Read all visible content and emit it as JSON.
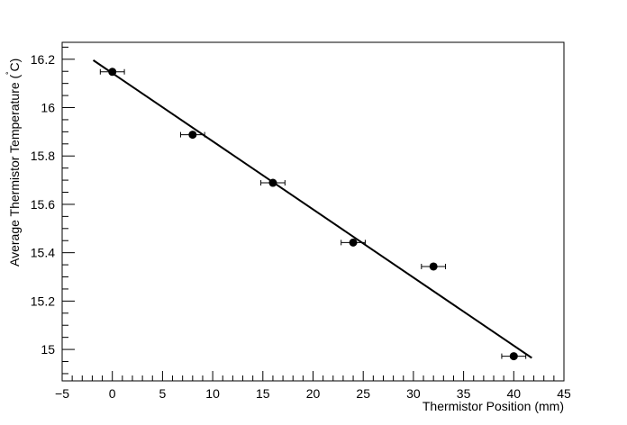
{
  "chart_data": {
    "type": "scatter",
    "title": "",
    "xlabel": "Thermistor Position (mm)",
    "ylabel_main": "Average Thermistor Temperature (",
    "ylabel_degree": "˚",
    "ylabel_unit": "C)",
    "xlim": [
      -5,
      45
    ],
    "ylim": [
      14.87,
      16.27
    ],
    "x_ticks": [
      -5,
      0,
      5,
      10,
      15,
      20,
      25,
      30,
      35,
      40,
      45
    ],
    "y_ticks": [
      15,
      15.2,
      15.4,
      15.6,
      15.8,
      16,
      16.2
    ],
    "x_tick_labels": [
      "−5",
      "0",
      "5",
      "10",
      "15",
      "20",
      "25",
      "30",
      "35",
      "40",
      "45"
    ],
    "y_tick_labels": [
      "15",
      "15.2",
      "15.4",
      "15.6",
      "15.8",
      "16",
      "16.2"
    ],
    "grid": false,
    "legend": "none",
    "points": [
      {
        "x": 0,
        "y": 16.148,
        "xerr": 1.2
      },
      {
        "x": 8,
        "y": 15.888,
        "xerr": 1.2
      },
      {
        "x": 16,
        "y": 15.689,
        "xerr": 1.2
      },
      {
        "x": 24,
        "y": 15.442,
        "xerr": 1.2
      },
      {
        "x": 32,
        "y": 15.343,
        "xerr": 1.2
      },
      {
        "x": 40,
        "y": 14.972,
        "xerr": 1.2
      }
    ],
    "fit_line": {
      "x": [
        -1.9,
        41.8
      ],
      "y": [
        16.196,
        14.965
      ]
    },
    "colors": {
      "marker": "#000000",
      "line": "#000000",
      "axes": "#000000"
    }
  }
}
